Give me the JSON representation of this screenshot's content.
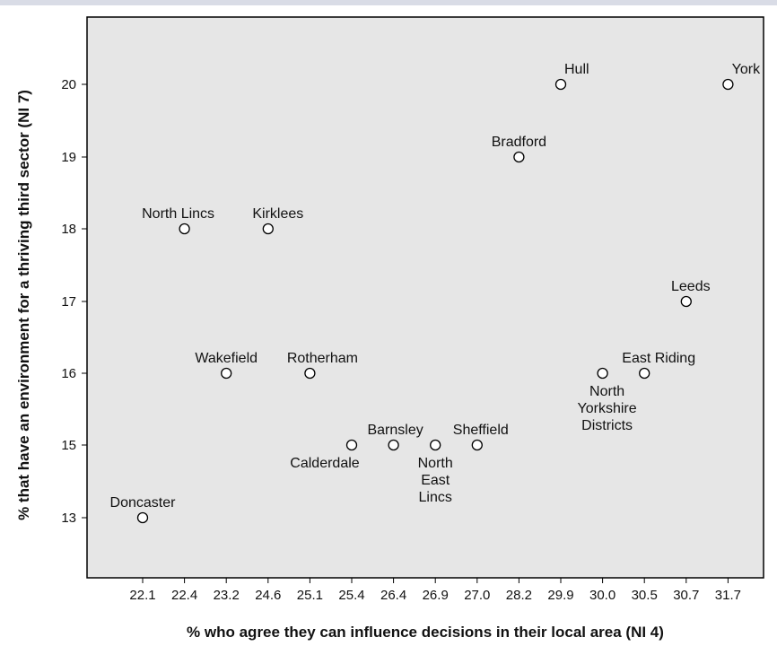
{
  "chart_data": {
    "type": "scatter",
    "xlabel": "% who agree they can influence decisions in their local area (NI 4)",
    "ylabel": "% that have an environment for a thriving third sector (NI 7)",
    "x_categories": [
      "22.1",
      "22.4",
      "23.2",
      "24.6",
      "25.1",
      "25.4",
      "26.4",
      "26.9",
      "27.0",
      "28.2",
      "29.9",
      "30.0",
      "30.5",
      "30.7",
      "31.7"
    ],
    "y_ticks": [
      "13",
      "15",
      "16",
      "17",
      "18",
      "19",
      "20"
    ],
    "colors": {
      "plot_background": "#e6e6e6",
      "marker_stroke": "#000000",
      "marker_fill": "#ffffff"
    },
    "points": [
      {
        "name": "Doncaster",
        "x": "22.1",
        "y": "13",
        "label_lines": [
          "Doncaster"
        ]
      },
      {
        "name": "North Lincs",
        "x": "22.4",
        "y": "18",
        "label_lines": [
          "North Lincs"
        ]
      },
      {
        "name": "Wakefield",
        "x": "23.2",
        "y": "16",
        "label_lines": [
          "Wakefield"
        ]
      },
      {
        "name": "Kirklees",
        "x": "24.6",
        "y": "18",
        "label_lines": [
          "Kirklees"
        ]
      },
      {
        "name": "Rotherham",
        "x": "25.1",
        "y": "16",
        "label_lines": [
          "Rotherham"
        ]
      },
      {
        "name": "Calderdale",
        "x": "25.4",
        "y": "15",
        "label_lines": [
          "Calderdale"
        ]
      },
      {
        "name": "Barnsley",
        "x": "26.4",
        "y": "15",
        "label_lines": [
          "Barnsley"
        ]
      },
      {
        "name": "North East Lincs",
        "x": "26.9",
        "y": "15",
        "label_lines": [
          "North",
          "East",
          "Lincs"
        ]
      },
      {
        "name": "Sheffield",
        "x": "27.0",
        "y": "15",
        "label_lines": [
          "Sheffield"
        ]
      },
      {
        "name": "Bradford",
        "x": "28.2",
        "y": "19",
        "label_lines": [
          "Bradford"
        ]
      },
      {
        "name": "Hull",
        "x": "29.9",
        "y": "20",
        "label_lines": [
          "Hull"
        ]
      },
      {
        "name": "North Yorkshire Districts",
        "x": "30.0",
        "y": "16",
        "label_lines": [
          "North",
          "Yorkshire",
          "Districts"
        ]
      },
      {
        "name": "East Riding",
        "x": "30.5",
        "y": "16",
        "label_lines": [
          "East Riding"
        ]
      },
      {
        "name": "Leeds",
        "x": "30.7",
        "y": "17",
        "label_lines": [
          "Leeds"
        ]
      },
      {
        "name": "York",
        "x": "31.7",
        "y": "20",
        "label_lines": [
          "York"
        ]
      }
    ]
  }
}
